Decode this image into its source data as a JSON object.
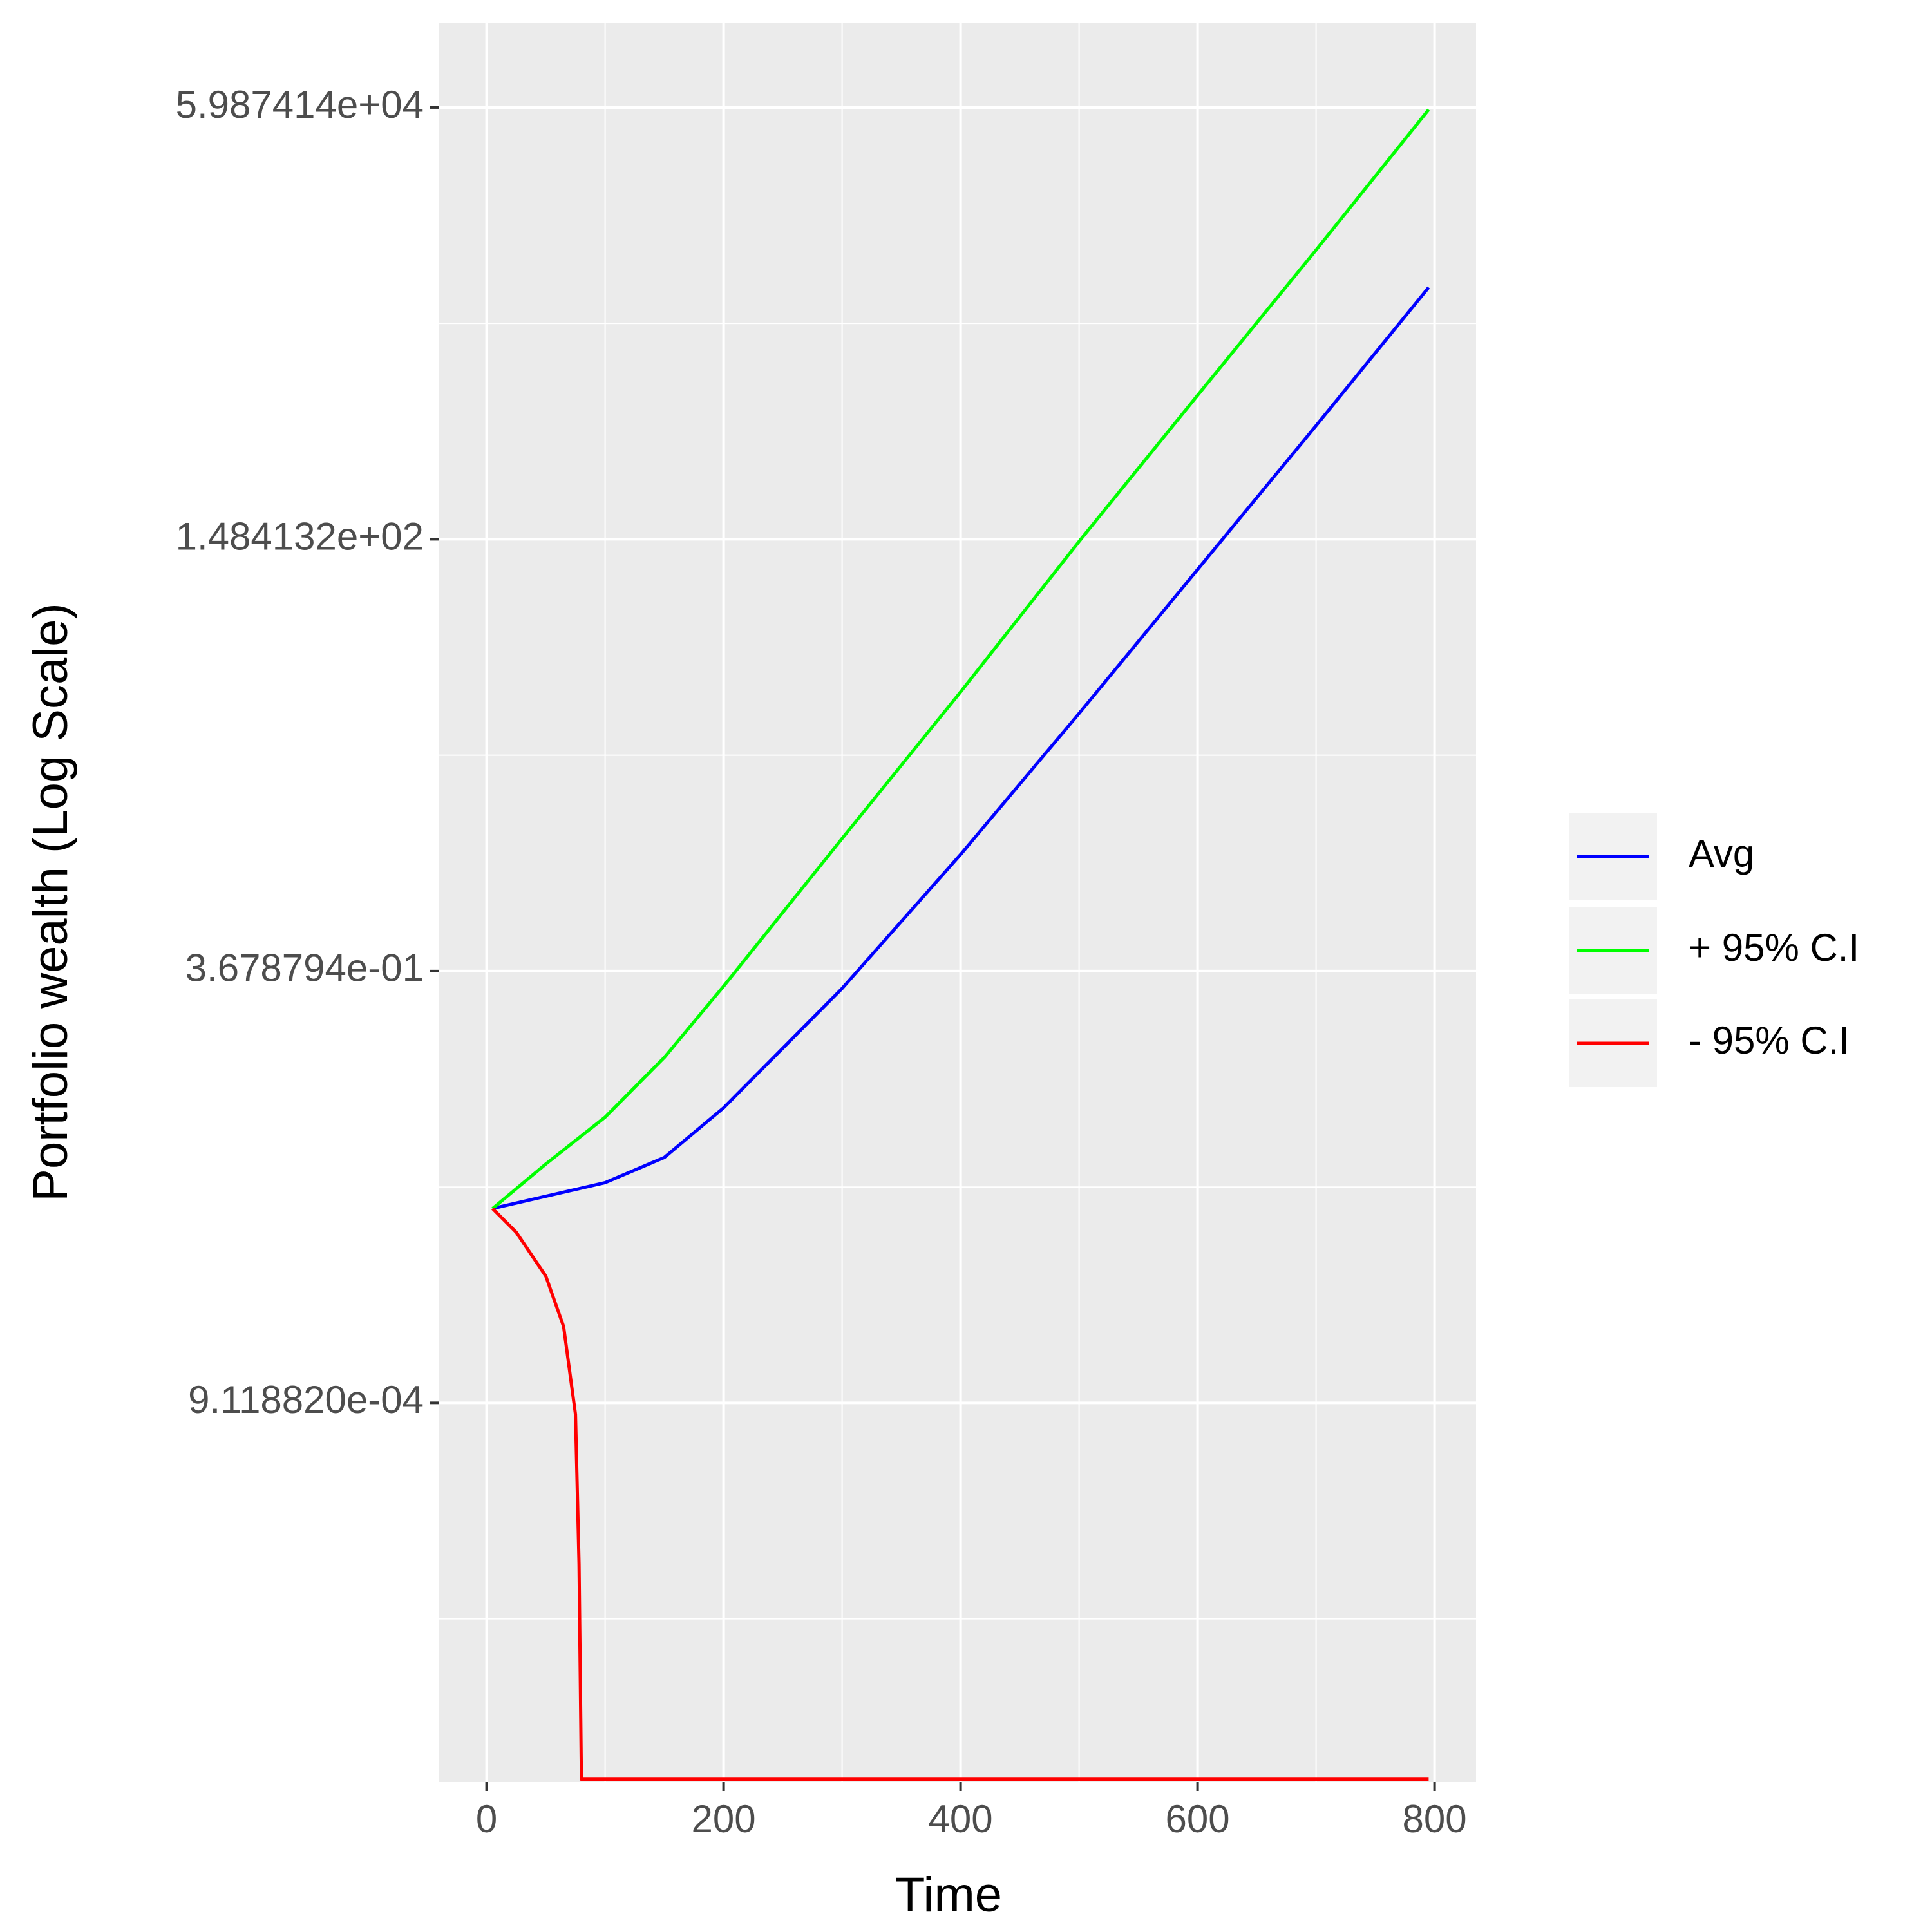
{
  "chart_data": {
    "type": "line",
    "x_label": "Time",
    "y_label": "Portfolio wealth (Log Scale)",
    "log_scale_y": true,
    "grid": true,
    "legend_position": "right",
    "xlim": [
      -40,
      835
    ],
    "xticks": [
      0,
      200,
      400,
      600,
      800
    ],
    "x_minor_ticks": [
      100,
      300,
      500,
      700
    ],
    "ylim": [
      4.7e-06,
      195000
    ],
    "yticks": [
      {
        "value": 0.000911882,
        "label": "9.118820e-04"
      },
      {
        "value": 0.3678794,
        "label": "3.678794e-01"
      },
      {
        "value": 148.4132,
        "label": "1.484132e+02"
      },
      {
        "value": 59874.14,
        "label": "5.987414e+04"
      }
    ],
    "y_minor_ticks": [
      4.54e-05,
      0.0183,
      7.389,
      2981
    ],
    "series": [
      {
        "name": "Avg",
        "color": "#0000ff",
        "x": [
          5,
          100,
          150,
          200,
          300,
          400,
          500,
          600,
          700,
          795
        ],
        "values": [
          0.01357,
          0.01945,
          0.0276,
          0.055,
          0.289,
          1.859,
          13.2,
          97.5,
          720,
          4915
        ]
      },
      {
        "name": "+ 95% C.I",
        "color": "#00ff00",
        "x": [
          5,
          50,
          100,
          150,
          200,
          300,
          400,
          500,
          600,
          700,
          795
        ],
        "values": [
          0.01357,
          0.0252,
          0.0483,
          0.1108,
          0.298,
          2.32,
          17.8,
          144,
          1097,
          8270,
          58100
        ]
      },
      {
        "name": "- 95% C.I",
        "color": "#ff0000",
        "x": [
          5,
          25,
          50,
          65,
          75,
          78,
          80,
          795
        ],
        "values": [
          0.01357,
          0.00976,
          0.0053,
          0.00263,
          0.000777,
          9.7e-05,
          4.88e-06,
          4.88e-06
        ]
      }
    ]
  }
}
